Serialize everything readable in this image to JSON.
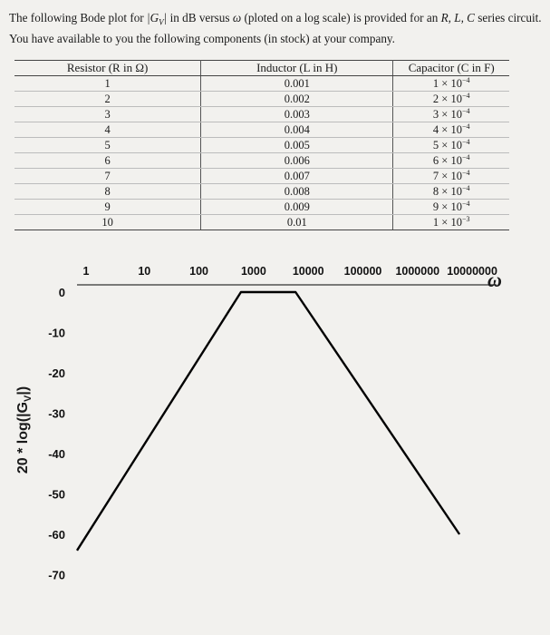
{
  "problem": {
    "text_part1": "The following Bode plot for ",
    "g_symbol": "|G",
    "g_sub": "V",
    "g_close": "|",
    "text_part2": " in dB versus ",
    "omega": "ω",
    "text_part3": " (ploted on a log scale) is provided for an ",
    "rlc": "R, L, C",
    "text_part4": " series circuit. You have available to you the following components (in stock) at your company."
  },
  "table": {
    "headers": [
      "Resistor (R in Ω)",
      "Inductor (L in H)",
      "Capacitor (C in F)"
    ],
    "resistors": [
      "1",
      "2",
      "3",
      "4",
      "5",
      "6",
      "7",
      "8",
      "9",
      "10"
    ],
    "inductors": [
      "0.001",
      "0.002",
      "0.003",
      "0.004",
      "0.005",
      "0.006",
      "0.007",
      "0.008",
      "0.009",
      "0.01"
    ],
    "capacitor_mantissas": [
      "1 × 10",
      "2 × 10",
      "3 × 10",
      "4 × 10",
      "5 × 10",
      "6 × 10",
      "7 × 10",
      "8 × 10",
      "9 × 10",
      "1 × 10"
    ],
    "capacitor_exponents": [
      "−4",
      "−4",
      "−4",
      "−4",
      "−4",
      "−4",
      "−4",
      "−4",
      "−4",
      "−3"
    ]
  },
  "chart_data": {
    "type": "line",
    "x_scale": "log",
    "x_ticks": [
      "1",
      "10",
      "100",
      "1000",
      "10000",
      "100000",
      "1000000",
      "10000000"
    ],
    "x_tick_values": [
      1,
      10,
      100,
      1000,
      10000,
      100000,
      1000000,
      10000000
    ],
    "y_ticks": [
      "0",
      "-10",
      "-20",
      "-30",
      "-40",
      "-50",
      "-60",
      "-70"
    ],
    "y_tick_values": [
      0,
      -10,
      -20,
      -30,
      -40,
      -50,
      -60,
      -70
    ],
    "ylabel": "20 * log(|G",
    "ylabel_sub": "V",
    "ylabel_close": "|)",
    "xlabel": "ω",
    "series": [
      {
        "x": [
          1,
          1000,
          10000,
          10000000
        ],
        "y": [
          -64,
          0,
          0,
          -60
        ]
      }
    ],
    "line_color": "#000000"
  }
}
